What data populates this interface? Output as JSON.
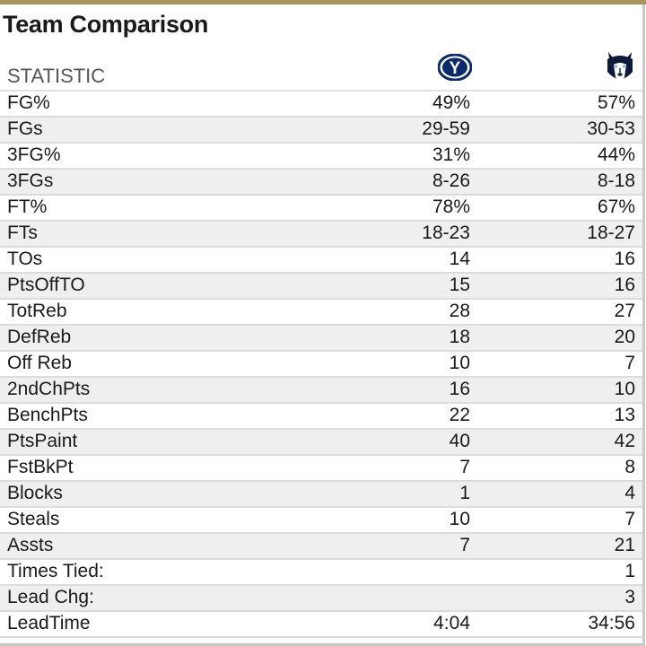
{
  "title": "Team Comparison",
  "column_header": "STATISTIC",
  "teams": [
    {
      "logo": "byu-cougar-y-logo",
      "logo_text": "Y",
      "color": "#0a2a6b"
    },
    {
      "logo": "uconn-husky-logo",
      "color": "#0e1a3c"
    }
  ],
  "colors": {
    "accent_bar": "#a8925d",
    "row_alt": "#efefef"
  },
  "rows": [
    {
      "label": "FG%",
      "team1": "49%",
      "team2": "57%"
    },
    {
      "label": "FGs",
      "team1": "29-59",
      "team2": "30-53"
    },
    {
      "label": "3FG%",
      "team1": "31%",
      "team2": "44%"
    },
    {
      "label": "3FGs",
      "team1": "8-26",
      "team2": "8-18"
    },
    {
      "label": "FT%",
      "team1": "78%",
      "team2": "67%"
    },
    {
      "label": "FTs",
      "team1": "18-23",
      "team2": "18-27"
    },
    {
      "label": "TOs",
      "team1": "14",
      "team2": "16"
    },
    {
      "label": "PtsOffTO",
      "team1": "15",
      "team2": "16"
    },
    {
      "label": "TotReb",
      "team1": "28",
      "team2": "27"
    },
    {
      "label": "DefReb",
      "team1": "18",
      "team2": "20"
    },
    {
      "label": "Off Reb",
      "team1": "10",
      "team2": "7"
    },
    {
      "label": "2ndChPts",
      "team1": "16",
      "team2": "10"
    },
    {
      "label": "BenchPts",
      "team1": "22",
      "team2": "13"
    },
    {
      "label": "PtsPaint",
      "team1": "40",
      "team2": "42"
    },
    {
      "label": "FstBkPt",
      "team1": "7",
      "team2": "8"
    },
    {
      "label": "Blocks",
      "team1": "1",
      "team2": "4"
    },
    {
      "label": "Steals",
      "team1": "10",
      "team2": "7"
    },
    {
      "label": "Assts",
      "team1": "7",
      "team2": "21"
    },
    {
      "label": "Times Tied:",
      "team1": "",
      "team2": "1"
    },
    {
      "label": "Lead Chg:",
      "team1": "",
      "team2": "3"
    },
    {
      "label": "LeadTime",
      "team1": "4:04",
      "team2": "34:56"
    }
  ]
}
